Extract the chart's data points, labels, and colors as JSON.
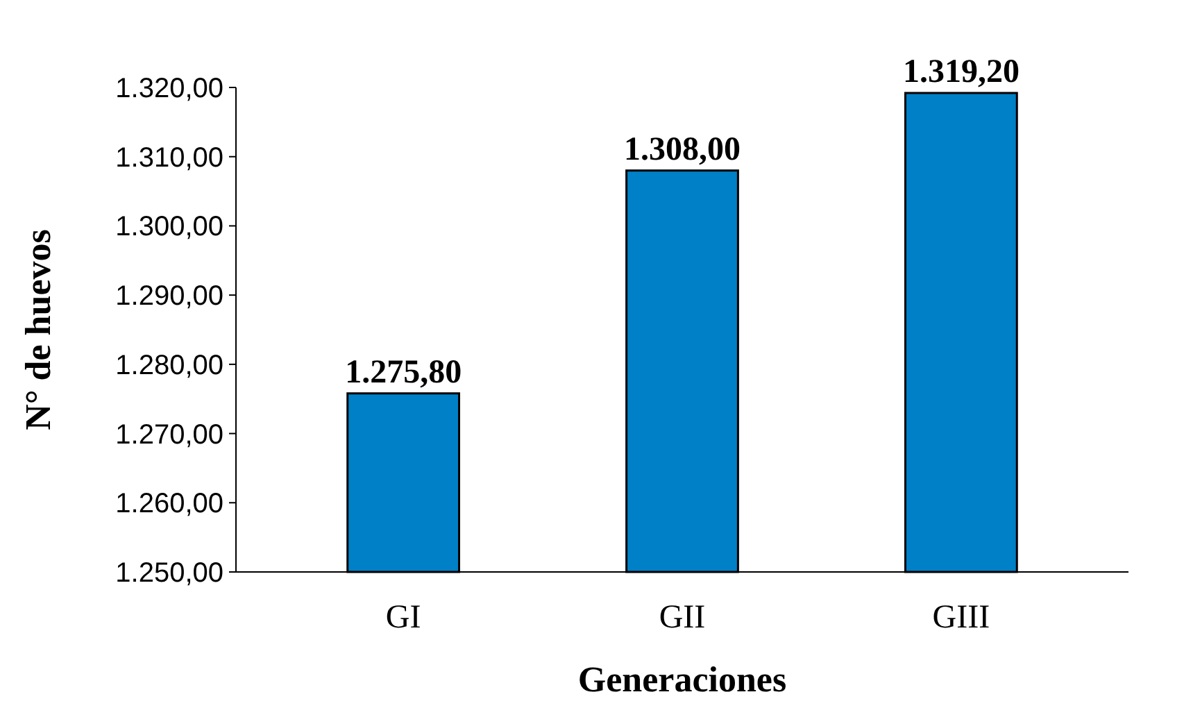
{
  "chart_data": {
    "type": "bar",
    "xlabel": "Generaciones",
    "ylabel": "N° de huevos",
    "categories": [
      "GI",
      "GII",
      "GIII"
    ],
    "values": [
      1275.8,
      1308.0,
      1319.2
    ],
    "value_labels": [
      "1.275,80",
      "1.308,00",
      "1.319,20"
    ],
    "color": "#0080c6",
    "ylim": [
      1250,
      1320
    ],
    "yticks": [
      {
        "value": 1250,
        "label": "1.250,00"
      },
      {
        "value": 1260,
        "label": "1.260,00"
      },
      {
        "value": 1270,
        "label": "1.270,00"
      },
      {
        "value": 1280,
        "label": "1.280,00"
      },
      {
        "value": 1290,
        "label": "1.290,00"
      },
      {
        "value": 1300,
        "label": "1.300,00"
      },
      {
        "value": 1310,
        "label": "1.310,00"
      },
      {
        "value": 1320,
        "label": "1.320,00"
      }
    ],
    "grid": false
  }
}
